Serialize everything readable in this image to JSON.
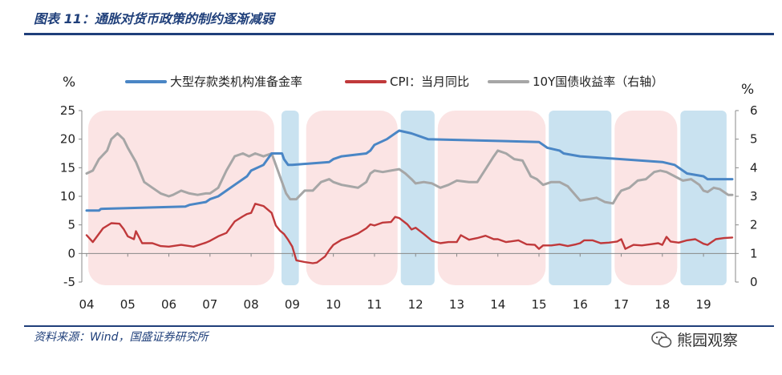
{
  "figure": {
    "title": "图表 11：通胀对货币政策的制约逐渐减弱",
    "source": "资料来源：Wind，国盛证券研究所",
    "watermark": "熊园观察"
  },
  "colors": {
    "rrr": "#4a86c5",
    "cpi": "#c0393b",
    "bond": "#a6a6a6",
    "pink_band": "#fbe4e4",
    "blue_band": "#c9e2f0",
    "rule": "#1f3f7a"
  },
  "chart_data": {
    "type": "line",
    "title": "图表 11：通胀对货币政策的制约逐渐减弱",
    "x_range": [
      2004.0,
      2019.7
    ],
    "x_ticks": [
      "04",
      "05",
      "06",
      "07",
      "08",
      "09",
      "10",
      "11",
      "12",
      "13",
      "14",
      "15",
      "16",
      "17",
      "18",
      "19"
    ],
    "left_axis": {
      "label": "%",
      "range": [
        -5,
        25
      ],
      "ticks": [
        -5,
        0,
        5,
        10,
        15,
        20,
        25
      ]
    },
    "right_axis": {
      "label": "%",
      "range": [
        0,
        6
      ],
      "ticks": [
        0,
        1,
        2,
        3,
        4,
        5,
        6
      ]
    },
    "shaded_periods": [
      {
        "start": 2004.0,
        "end": 2008.6,
        "color": "pink_band"
      },
      {
        "start": 2008.7,
        "end": 2009.2,
        "color": "blue_band"
      },
      {
        "start": 2009.3,
        "end": 2011.6,
        "color": "pink_band"
      },
      {
        "start": 2011.6,
        "end": 2012.5,
        "color": "blue_band"
      },
      {
        "start": 2012.5,
        "end": 2015.2,
        "color": "pink_band"
      },
      {
        "start": 2015.2,
        "end": 2016.8,
        "color": "blue_band"
      },
      {
        "start": 2016.8,
        "end": 2018.4,
        "color": "pink_band"
      },
      {
        "start": 2018.4,
        "end": 2019.6,
        "color": "blue_band"
      }
    ],
    "series": [
      {
        "name": "大型存款类机构准备金率",
        "axis": "left",
        "color": "rrr",
        "points": [
          [
            2004.0,
            7.5
          ],
          [
            2004.3,
            7.5
          ],
          [
            2004.35,
            7.8
          ],
          [
            2006.4,
            8.2
          ],
          [
            2006.5,
            8.5
          ],
          [
            2006.9,
            9.0
          ],
          [
            2007.0,
            9.5
          ],
          [
            2007.2,
            10.0
          ],
          [
            2007.4,
            11.0
          ],
          [
            2007.6,
            12.0
          ],
          [
            2007.9,
            13.5
          ],
          [
            2008.0,
            14.5
          ],
          [
            2008.3,
            15.5
          ],
          [
            2008.5,
            17.5
          ],
          [
            2008.75,
            17.5
          ],
          [
            2008.8,
            16.5
          ],
          [
            2008.9,
            15.5
          ],
          [
            2009.0,
            15.5
          ],
          [
            2009.9,
            16.0
          ],
          [
            2010.0,
            16.5
          ],
          [
            2010.2,
            17.0
          ],
          [
            2010.8,
            17.5
          ],
          [
            2010.9,
            18.0
          ],
          [
            2011.0,
            19.0
          ],
          [
            2011.3,
            20.0
          ],
          [
            2011.5,
            21.0
          ],
          [
            2011.6,
            21.5
          ],
          [
            2011.9,
            21.0
          ],
          [
            2012.1,
            20.5
          ],
          [
            2012.3,
            20.0
          ],
          [
            2015.0,
            19.5
          ],
          [
            2015.2,
            18.5
          ],
          [
            2015.5,
            18.0
          ],
          [
            2015.6,
            17.5
          ],
          [
            2016.0,
            17.0
          ],
          [
            2018.0,
            16.0
          ],
          [
            2018.3,
            15.5
          ],
          [
            2018.6,
            14.0
          ],
          [
            2019.0,
            13.5
          ],
          [
            2019.1,
            13.0
          ],
          [
            2019.7,
            13.0
          ]
        ]
      },
      {
        "name": "CPI：当月同比",
        "axis": "left",
        "color": "cpi",
        "points": [
          [
            2004.0,
            3.2
          ],
          [
            2004.15,
            2.0
          ],
          [
            2004.4,
            4.4
          ],
          [
            2004.6,
            5.3
          ],
          [
            2004.8,
            5.2
          ],
          [
            2004.9,
            4.3
          ],
          [
            2005.0,
            3.0
          ],
          [
            2005.15,
            2.5
          ],
          [
            2005.2,
            3.9
          ],
          [
            2005.35,
            1.8
          ],
          [
            2005.6,
            1.8
          ],
          [
            2005.8,
            1.3
          ],
          [
            2006.0,
            1.2
          ],
          [
            2006.3,
            1.5
          ],
          [
            2006.6,
            1.2
          ],
          [
            2006.9,
            1.9
          ],
          [
            2007.0,
            2.2
          ],
          [
            2007.2,
            3.0
          ],
          [
            2007.4,
            3.6
          ],
          [
            2007.6,
            5.6
          ],
          [
            2007.8,
            6.5
          ],
          [
            2007.9,
            6.9
          ],
          [
            2008.0,
            7.1
          ],
          [
            2008.1,
            8.7
          ],
          [
            2008.3,
            8.3
          ],
          [
            2008.5,
            7.1
          ],
          [
            2008.6,
            4.9
          ],
          [
            2008.7,
            4.0
          ],
          [
            2008.8,
            3.4
          ],
          [
            2008.9,
            2.4
          ],
          [
            2009.0,
            1.2
          ],
          [
            2009.1,
            -1.2
          ],
          [
            2009.3,
            -1.5
          ],
          [
            2009.5,
            -1.7
          ],
          [
            2009.6,
            -1.6
          ],
          [
            2009.8,
            -0.5
          ],
          [
            2009.9,
            0.6
          ],
          [
            2010.0,
            1.5
          ],
          [
            2010.2,
            2.4
          ],
          [
            2010.4,
            2.9
          ],
          [
            2010.6,
            3.5
          ],
          [
            2010.8,
            4.4
          ],
          [
            2010.9,
            5.1
          ],
          [
            2011.0,
            4.9
          ],
          [
            2011.2,
            5.4
          ],
          [
            2011.4,
            5.5
          ],
          [
            2011.5,
            6.4
          ],
          [
            2011.6,
            6.2
          ],
          [
            2011.8,
            5.1
          ],
          [
            2011.9,
            4.2
          ],
          [
            2012.0,
            4.5
          ],
          [
            2012.2,
            3.4
          ],
          [
            2012.4,
            2.2
          ],
          [
            2012.6,
            1.8
          ],
          [
            2012.8,
            2.0
          ],
          [
            2013.0,
            2.0
          ],
          [
            2013.1,
            3.2
          ],
          [
            2013.3,
            2.4
          ],
          [
            2013.5,
            2.7
          ],
          [
            2013.7,
            3.1
          ],
          [
            2013.9,
            2.5
          ],
          [
            2014.0,
            2.5
          ],
          [
            2014.2,
            2.0
          ],
          [
            2014.5,
            2.3
          ],
          [
            2014.7,
            1.6
          ],
          [
            2014.9,
            1.5
          ],
          [
            2015.0,
            0.8
          ],
          [
            2015.1,
            1.4
          ],
          [
            2015.3,
            1.4
          ],
          [
            2015.5,
            1.6
          ],
          [
            2015.7,
            1.3
          ],
          [
            2015.9,
            1.6
          ],
          [
            2016.0,
            1.8
          ],
          [
            2016.1,
            2.3
          ],
          [
            2016.3,
            2.3
          ],
          [
            2016.5,
            1.8
          ],
          [
            2016.7,
            1.9
          ],
          [
            2016.9,
            2.1
          ],
          [
            2017.0,
            2.5
          ],
          [
            2017.1,
            0.8
          ],
          [
            2017.3,
            1.5
          ],
          [
            2017.5,
            1.4
          ],
          [
            2017.7,
            1.6
          ],
          [
            2017.9,
            1.8
          ],
          [
            2018.0,
            1.5
          ],
          [
            2018.1,
            2.9
          ],
          [
            2018.2,
            2.1
          ],
          [
            2018.4,
            1.9
          ],
          [
            2018.6,
            2.3
          ],
          [
            2018.8,
            2.5
          ],
          [
            2019.0,
            1.7
          ],
          [
            2019.1,
            1.5
          ],
          [
            2019.3,
            2.5
          ],
          [
            2019.5,
            2.7
          ],
          [
            2019.7,
            2.8
          ]
        ]
      },
      {
        "name": "10Y国债收益率（右轴）",
        "axis": "right",
        "color": "bond",
        "points": [
          [
            2004.0,
            3.8
          ],
          [
            2004.15,
            3.9
          ],
          [
            2004.3,
            4.3
          ],
          [
            2004.5,
            4.6
          ],
          [
            2004.6,
            5.0
          ],
          [
            2004.75,
            5.2
          ],
          [
            2004.9,
            5.0
          ],
          [
            2005.0,
            4.7
          ],
          [
            2005.2,
            4.2
          ],
          [
            2005.4,
            3.5
          ],
          [
            2005.6,
            3.3
          ],
          [
            2005.8,
            3.1
          ],
          [
            2006.0,
            3.0
          ],
          [
            2006.1,
            3.05
          ],
          [
            2006.3,
            3.2
          ],
          [
            2006.5,
            3.1
          ],
          [
            2006.7,
            3.05
          ],
          [
            2006.9,
            3.1
          ],
          [
            2007.0,
            3.1
          ],
          [
            2007.2,
            3.3
          ],
          [
            2007.4,
            3.9
          ],
          [
            2007.6,
            4.4
          ],
          [
            2007.8,
            4.5
          ],
          [
            2007.95,
            4.4
          ],
          [
            2008.1,
            4.5
          ],
          [
            2008.3,
            4.4
          ],
          [
            2008.5,
            4.5
          ],
          [
            2008.6,
            4.1
          ],
          [
            2008.75,
            3.5
          ],
          [
            2008.85,
            3.1
          ],
          [
            2008.95,
            2.9
          ],
          [
            2009.1,
            2.9
          ],
          [
            2009.3,
            3.2
          ],
          [
            2009.5,
            3.2
          ],
          [
            2009.7,
            3.5
          ],
          [
            2009.9,
            3.6
          ],
          [
            2010.0,
            3.5
          ],
          [
            2010.2,
            3.4
          ],
          [
            2010.4,
            3.35
          ],
          [
            2010.6,
            3.3
          ],
          [
            2010.8,
            3.5
          ],
          [
            2010.9,
            3.8
          ],
          [
            2011.0,
            3.9
          ],
          [
            2011.2,
            3.85
          ],
          [
            2011.4,
            3.9
          ],
          [
            2011.6,
            3.95
          ],
          [
            2011.75,
            3.8
          ],
          [
            2011.9,
            3.6
          ],
          [
            2012.0,
            3.45
          ],
          [
            2012.2,
            3.5
          ],
          [
            2012.4,
            3.45
          ],
          [
            2012.6,
            3.3
          ],
          [
            2012.8,
            3.4
          ],
          [
            2013.0,
            3.55
          ],
          [
            2013.3,
            3.5
          ],
          [
            2013.5,
            3.5
          ],
          [
            2013.7,
            3.95
          ],
          [
            2013.9,
            4.4
          ],
          [
            2014.0,
            4.6
          ],
          [
            2014.2,
            4.5
          ],
          [
            2014.4,
            4.3
          ],
          [
            2014.6,
            4.25
          ],
          [
            2014.8,
            3.7
          ],
          [
            2014.95,
            3.6
          ],
          [
            2015.1,
            3.4
          ],
          [
            2015.3,
            3.5
          ],
          [
            2015.5,
            3.5
          ],
          [
            2015.7,
            3.35
          ],
          [
            2015.85,
            3.1
          ],
          [
            2016.0,
            2.85
          ],
          [
            2016.2,
            2.9
          ],
          [
            2016.4,
            2.95
          ],
          [
            2016.6,
            2.8
          ],
          [
            2016.8,
            2.75
          ],
          [
            2016.9,
            3.0
          ],
          [
            2017.0,
            3.2
          ],
          [
            2017.2,
            3.3
          ],
          [
            2017.4,
            3.55
          ],
          [
            2017.6,
            3.6
          ],
          [
            2017.8,
            3.85
          ],
          [
            2017.95,
            3.9
          ],
          [
            2018.1,
            3.85
          ],
          [
            2018.3,
            3.7
          ],
          [
            2018.5,
            3.55
          ],
          [
            2018.7,
            3.6
          ],
          [
            2018.9,
            3.4
          ],
          [
            2019.0,
            3.2
          ],
          [
            2019.1,
            3.15
          ],
          [
            2019.25,
            3.3
          ],
          [
            2019.4,
            3.25
          ],
          [
            2019.5,
            3.15
          ],
          [
            2019.6,
            3.05
          ],
          [
            2019.7,
            3.05
          ]
        ]
      }
    ]
  }
}
